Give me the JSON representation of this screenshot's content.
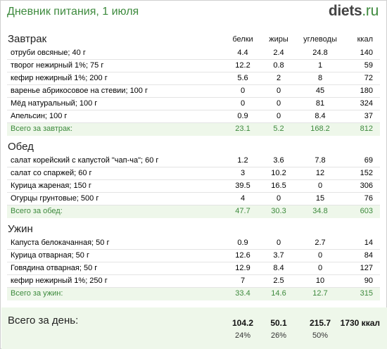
{
  "header": {
    "title": "Дневник питания, 1 июля",
    "logo_main": "diets",
    "logo_tld": ".ru"
  },
  "columns": {
    "protein": "белки",
    "fat": "жиры",
    "carbs": "углеводы",
    "kcal": "ккал"
  },
  "meals": [
    {
      "title": "Завтрак",
      "items": [
        {
          "name": "отруби овсяные; 40 г",
          "p": "4.4",
          "f": "2.4",
          "c": "24.8",
          "k": "140"
        },
        {
          "name": "творог нежирный 1%; 75 г",
          "p": "12.2",
          "f": "0.8",
          "c": "1",
          "k": "59"
        },
        {
          "name": "кефир нежирный 1%; 200 г",
          "p": "5.6",
          "f": "2",
          "c": "8",
          "k": "72"
        },
        {
          "name": "варенье абрикосовое на стевии; 100 г",
          "p": "0",
          "f": "0",
          "c": "45",
          "k": "180"
        },
        {
          "name": "Мёд натуральный; 100 г",
          "p": "0",
          "f": "0",
          "c": "81",
          "k": "324"
        },
        {
          "name": "Апельсин; 100 г",
          "p": "0.9",
          "f": "0",
          "c": "8.4",
          "k": "37"
        }
      ],
      "total": {
        "name": "Всего за завтрак:",
        "p": "23.1",
        "f": "5.2",
        "c": "168.2",
        "k": "812"
      }
    },
    {
      "title": "Обед",
      "items": [
        {
          "name": "салат корейский с капустой \"чап-ча\"; 60 г",
          "p": "1.2",
          "f": "3.6",
          "c": "7.8",
          "k": "69"
        },
        {
          "name": "салат со спаржей; 60 г",
          "p": "3",
          "f": "10.2",
          "c": "12",
          "k": "152"
        },
        {
          "name": "Курица жареная; 150 г",
          "p": "39.5",
          "f": "16.5",
          "c": "0",
          "k": "306"
        },
        {
          "name": "Огурцы грунтовые; 500 г",
          "p": "4",
          "f": "0",
          "c": "15",
          "k": "76"
        }
      ],
      "total": {
        "name": "Всего за обед:",
        "p": "47.7",
        "f": "30.3",
        "c": "34.8",
        "k": "603"
      }
    },
    {
      "title": "Ужин",
      "items": [
        {
          "name": "Капуста белокачанная; 50 г",
          "p": "0.9",
          "f": "0",
          "c": "2.7",
          "k": "14"
        },
        {
          "name": "Курица отварная; 50 г",
          "p": "12.6",
          "f": "3.7",
          "c": "0",
          "k": "84"
        },
        {
          "name": "Говядина отварная; 50 г",
          "p": "12.9",
          "f": "8.4",
          "c": "0",
          "k": "127"
        },
        {
          "name": "кефир нежирный 1%; 250 г",
          "p": "7",
          "f": "2.5",
          "c": "10",
          "k": "90"
        }
      ],
      "total": {
        "name": "Всего за ужин:",
        "p": "33.4",
        "f": "14.6",
        "c": "12.7",
        "k": "315"
      }
    }
  ],
  "day": {
    "label": "Всего за день:",
    "p": "104.2",
    "f": "50.1",
    "c": "215.7",
    "k": "1730 ккал",
    "p_pct": "24%",
    "f_pct": "26%",
    "c_pct": "50%"
  }
}
